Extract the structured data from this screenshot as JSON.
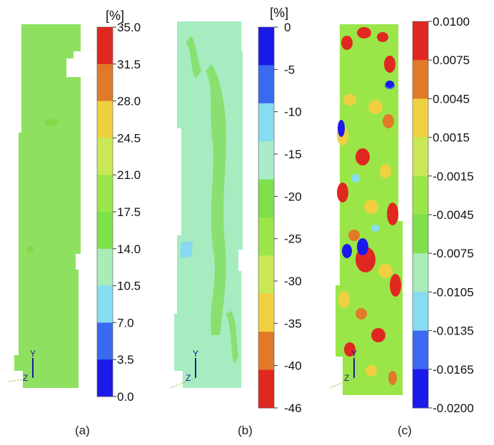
{
  "panels": [
    {
      "id": "a",
      "caption": "(a)",
      "unit": "[%]",
      "scale_labels": [
        "35.0",
        "31.5",
        "28.0",
        "24.5",
        "21.0",
        "17.5",
        "14.0",
        "10.5",
        "7.0",
        "3.5",
        "0.0"
      ],
      "colors": [
        "#e02820",
        "#e07a28",
        "#f0d040",
        "#c8e858",
        "#9ae648",
        "#7ee04a",
        "#a8ecb8",
        "#86dcf0",
        "#3a6af0",
        "#1a1aea"
      ],
      "specimen_color": "#8ee060"
    },
    {
      "id": "b",
      "caption": "(b)",
      "unit": "[%]",
      "scale_labels": [
        "0",
        "-5",
        "-10",
        "-15",
        "-20",
        "-25",
        "-30",
        "-35",
        "-40",
        "-46"
      ],
      "colors": [
        "#1a1ae8",
        "#3a6af0",
        "#86dcf0",
        "#a8ecc8",
        "#7ee04a",
        "#9ae648",
        "#c8e858",
        "#f0d040",
        "#e07a28",
        "#e02820"
      ],
      "specimen_color": "#a6ecc0"
    },
    {
      "id": "c",
      "caption": "(c)",
      "unit": "",
      "scale_labels": [
        "0.0100",
        "0.0075",
        "0.0045",
        "0.0015",
        "-0.0015",
        "-0.0045",
        "-0.0075",
        "-0.0105",
        "-0.0135",
        "-0.0165",
        "-0.0200"
      ],
      "colors": [
        "#e02820",
        "#e07a28",
        "#f0d040",
        "#c8e858",
        "#9ae648",
        "#7ee04a",
        "#a8ecb8",
        "#86dcf0",
        "#3a6af0",
        "#1a1aea"
      ],
      "specimen_color": "#9ae648"
    }
  ],
  "axis_triad": {
    "y_label": "Y",
    "z_label": "Z"
  }
}
